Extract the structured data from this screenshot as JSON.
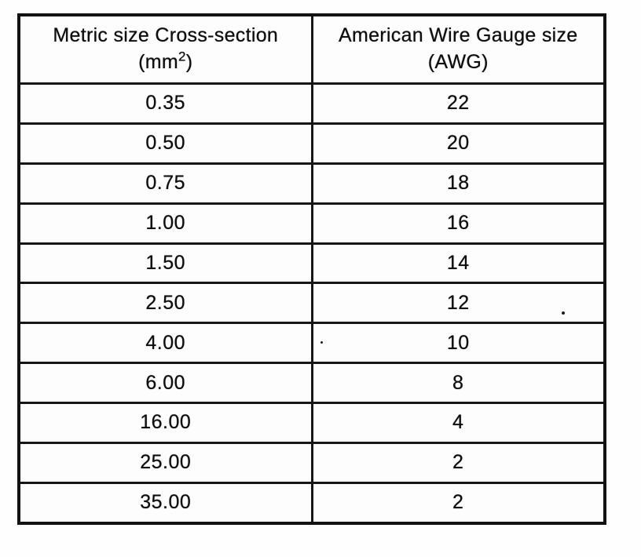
{
  "table": {
    "header": {
      "metric": {
        "line1": "Metric size Cross-section",
        "unit_prefix": "(mm",
        "unit_sup": "2",
        "unit_suffix": ")"
      },
      "awg": {
        "line1": "American Wire Gauge size",
        "line2": "(AWG)"
      }
    },
    "rows": [
      {
        "metric": "0.35",
        "awg": "22"
      },
      {
        "metric": "0.50",
        "awg": "20"
      },
      {
        "metric": "0.75",
        "awg": "18"
      },
      {
        "metric": "1.00",
        "awg": "16"
      },
      {
        "metric": "1.50",
        "awg": "14"
      },
      {
        "metric": "2.50",
        "awg": "12"
      },
      {
        "metric": "4.00",
        "awg": "10"
      },
      {
        "metric": "6.00",
        "awg": "8"
      },
      {
        "metric": "16.00",
        "awg": "4"
      },
      {
        "metric": "25.00",
        "awg": "2"
      },
      {
        "metric": "35.00",
        "awg": "2"
      }
    ]
  },
  "colors": {
    "ink": "#0d0d0d",
    "border": "#161616",
    "paper": "#fefefe"
  }
}
